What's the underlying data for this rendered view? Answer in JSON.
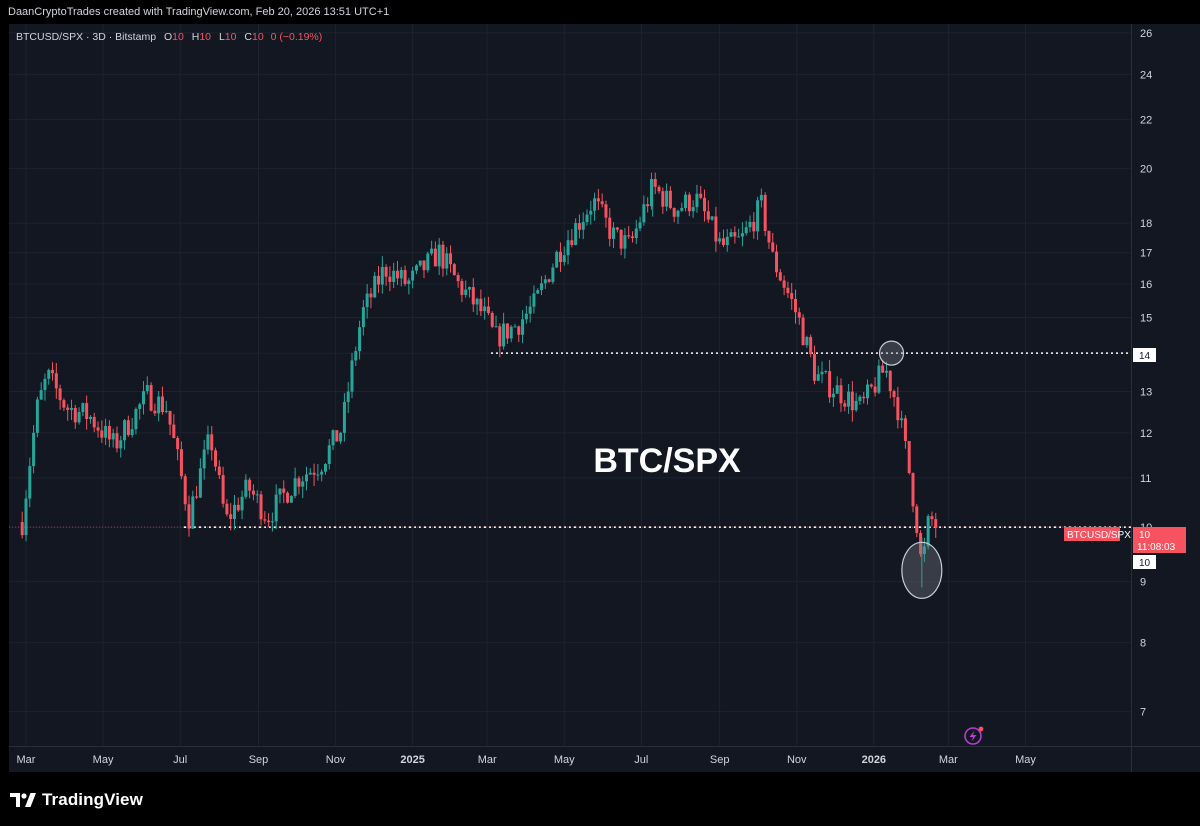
{
  "attribution": "DaanCryptoTrades created with TradingView.com, Feb 20, 2026 13:51 UTC+1",
  "legend": {
    "symbol": "BTCUSD/SPX · 3D · Bitstamp",
    "o_label": "O",
    "o_value": "10",
    "h_label": "H",
    "h_value": "10",
    "l_label": "L",
    "l_value": "10",
    "c_label": "C",
    "c_value": "10",
    "change": "0 (−0.19%)"
  },
  "watermark": "BTC/SPX",
  "price_tag": {
    "symbol": "BTCUSD/SPX",
    "value": "10",
    "countdown": "11:08:03"
  },
  "level_labels": {
    "resistance": "14",
    "support": "10"
  },
  "branding": "TradingView",
  "colors": {
    "up": "#26a69a",
    "down": "#f7525f",
    "background": "#131722",
    "grid": "#1e222d",
    "level_line": "#ffffff",
    "highlight": "#7a808c",
    "price_tag": "#f7525f",
    "alert_icon": "#b43fd1"
  },
  "chart_data": {
    "type": "candlestick",
    "title": "BTC/SPX",
    "symbol": "BTCUSD/SPX",
    "timeframe": "3D",
    "exchange": "Bitstamp",
    "y_scale": "log",
    "ylim": [
      6.4,
      26.3
    ],
    "y_ticks": [
      7,
      8,
      9,
      10,
      11,
      12,
      13,
      14,
      15,
      16,
      17,
      18,
      20,
      22,
      24,
      26
    ],
    "x_ticks": [
      "Mar",
      "May",
      "Jul",
      "Sep",
      "Nov",
      "2025",
      "Mar",
      "May",
      "Jul",
      "Sep",
      "Nov",
      "2026",
      "Mar",
      "May"
    ],
    "x_tick_dates": [
      "2024-03-01",
      "2024-05-01",
      "2024-07-01",
      "2024-09-01",
      "2024-11-01",
      "2025-01-01",
      "2025-03-01",
      "2025-05-01",
      "2025-07-01",
      "2025-09-01",
      "2025-11-01",
      "2026-01-01",
      "2026-03-01",
      "2026-05-01"
    ],
    "close_series": [
      [
        "2024-02-27",
        10.1
      ],
      [
        "2024-03-10",
        12.6
      ],
      [
        "2024-03-18",
        13.4
      ],
      [
        "2024-04-02",
        12.6
      ],
      [
        "2024-04-20",
        12.4
      ],
      [
        "2024-05-10",
        11.7
      ],
      [
        "2024-06-05",
        12.9
      ],
      [
        "2024-06-20",
        12.6
      ],
      [
        "2024-07-08",
        10.2
      ],
      [
        "2024-07-25",
        11.9
      ],
      [
        "2024-08-06",
        10.1
      ],
      [
        "2024-08-24",
        10.8
      ],
      [
        "2024-09-08",
        10.2
      ],
      [
        "2024-10-02",
        11.0
      ],
      [
        "2024-10-20",
        11.3
      ],
      [
        "2024-11-06",
        12.1
      ],
      [
        "2024-11-22",
        15.1
      ],
      [
        "2024-12-10",
        16.5
      ],
      [
        "2024-12-28",
        16.0
      ],
      [
        "2025-01-22",
        17.0
      ],
      [
        "2025-02-06",
        16.0
      ],
      [
        "2025-02-28",
        15.0
      ],
      [
        "2025-03-07",
        14.4
      ],
      [
        "2025-03-25",
        14.8
      ],
      [
        "2025-04-08",
        15.4
      ],
      [
        "2025-04-26",
        17.0
      ],
      [
        "2025-05-12",
        18.0
      ],
      [
        "2025-05-24",
        18.8
      ],
      [
        "2025-06-08",
        17.6
      ],
      [
        "2025-06-22",
        17.2
      ],
      [
        "2025-07-10",
        19.3
      ],
      [
        "2025-07-28",
        18.5
      ],
      [
        "2025-08-13",
        18.9
      ],
      [
        "2025-09-02",
        17.2
      ],
      [
        "2025-09-18",
        17.4
      ],
      [
        "2025-10-04",
        18.6
      ],
      [
        "2025-10-13",
        16.8
      ],
      [
        "2025-11-02",
        15.0
      ],
      [
        "2025-11-16",
        13.4
      ],
      [
        "2025-12-04",
        13.0
      ],
      [
        "2025-12-22",
        12.6
      ],
      [
        "2026-01-10",
        13.6
      ],
      [
        "2026-01-20",
        12.6
      ],
      [
        "2026-02-03",
        10.3
      ],
      [
        "2026-02-08",
        9.2
      ],
      [
        "2026-02-14",
        10.2
      ],
      [
        "2026-02-20",
        10.0
      ]
    ],
    "extremes": [
      {
        "date": "2025-07-10",
        "high": 19.6
      },
      {
        "date": "2026-02-08",
        "low": 8.9
      }
    ],
    "horizontal_levels": [
      {
        "price": 14.0,
        "from": "2025-03-04",
        "label": "14"
      },
      {
        "price": 10.0,
        "from": "2024-07-04",
        "label": "10"
      }
    ],
    "highlights": [
      {
        "date": "2026-01-15",
        "price": 14.0
      },
      {
        "date": "2026-02-08",
        "price": 9.2
      }
    ],
    "last_price": 10.0,
    "annotation": "BTC/SPX"
  }
}
